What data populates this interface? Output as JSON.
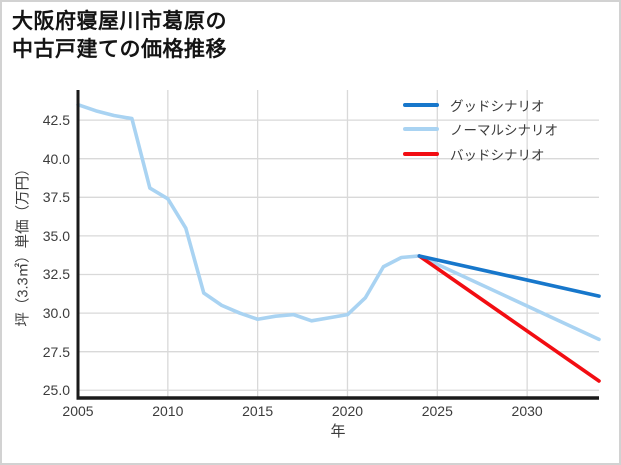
{
  "window": {
    "background": "#ffffff",
    "border_color": "#d2d2d2"
  },
  "chart_data": {
    "type": "line",
    "title": "大阪府寝屋川市葛原の\n中古戸建ての価格推移",
    "xlabel": "年",
    "ylabel": "坪（3.3㎡）単価（万円）",
    "xlim": [
      2005,
      2034
    ],
    "ylim": [
      24.5,
      44.45
    ],
    "x_ticks": {
      "values": [
        2005,
        2010,
        2015,
        2020,
        2025,
        2030
      ],
      "labels": [
        "2005",
        "2010",
        "2015",
        "2020",
        "2025",
        "2030"
      ]
    },
    "y_ticks": {
      "values": [
        25.0,
        27.5,
        30.0,
        32.5,
        35.0,
        37.5,
        40.0,
        42.5
      ],
      "labels": [
        "25.0",
        "27.5",
        "30.0",
        "32.5",
        "35.0",
        "37.5",
        "40.0",
        "42.5"
      ]
    },
    "grid": true,
    "grid_color": "#d9d9d9",
    "axis_color": "#1a1a1a",
    "tick_text_color": "#3c3c3c",
    "colors": {
      "good": "#1777cb",
      "normal": "#a9d3f2",
      "bad": "#f20d12"
    },
    "series": [
      {
        "name": "ノーマルシナリオ",
        "color": "#a9d3f2",
        "x": [
          2005,
          2006,
          2007,
          2008,
          2009,
          2010,
          2011,
          2012,
          2013,
          2014,
          2015,
          2016,
          2017,
          2018,
          2019,
          2020,
          2021,
          2022,
          2023,
          2024,
          2034
        ],
        "values": [
          43.5,
          43.1,
          42.8,
          42.6,
          38.1,
          37.4,
          35.5,
          31.3,
          30.5,
          30.0,
          29.6,
          29.8,
          29.9,
          29.5,
          29.7,
          29.9,
          31.0,
          33.0,
          33.6,
          33.7,
          28.3
        ]
      },
      {
        "name": "バッドシナリオ",
        "color": "#f20d12",
        "x": [
          2024,
          2034
        ],
        "values": [
          33.7,
          25.6
        ]
      },
      {
        "name": "グッドシナリオ",
        "color": "#1777cb",
        "x": [
          2024,
          2034
        ],
        "values": [
          33.7,
          31.1
        ]
      }
    ],
    "legend": {
      "position": "upper-right",
      "entries": [
        {
          "label": "グッドシナリオ",
          "color": "#1777cb"
        },
        {
          "label": "ノーマルシナリオ",
          "color": "#a9d3f2"
        },
        {
          "label": "バッドシナリオ",
          "color": "#f20d12"
        }
      ]
    }
  }
}
